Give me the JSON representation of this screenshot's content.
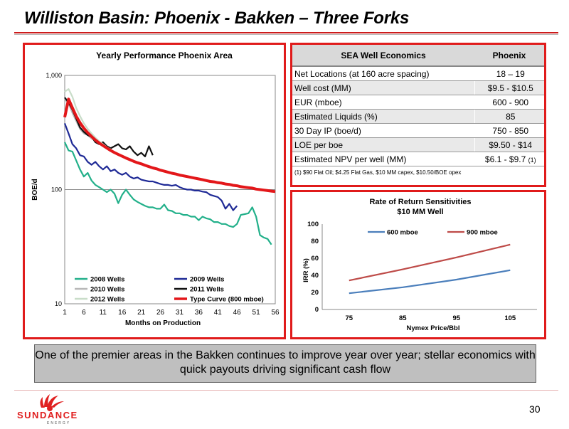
{
  "slide": {
    "title": "Williston Basin: Phoenix - Bakken – Three Forks",
    "callout": "One of the premier areas in the Bakken continues to improve year over year; stellar economics with quick payouts driving significant cash flow",
    "page_number": "30",
    "logo_text": "SUNDANCE",
    "logo_subtext": "ENERGY"
  },
  "economics": {
    "header_label": "SEA Well Economics",
    "header_value": "Phoenix",
    "rows": [
      {
        "label": "Net Locations (at 160 acre spacing)",
        "value": "18 – 19",
        "note": ""
      },
      {
        "label": "Well cost (MM)",
        "value": "$9.5 - $10.5",
        "note": ""
      },
      {
        "label": "EUR (mboe)",
        "value": "600 - 900",
        "note": ""
      },
      {
        "label": "Estimated Liquids (%)",
        "value": "85",
        "note": ""
      },
      {
        "label": "30 Day IP (boe/d)",
        "value": "750 - 850",
        "note": ""
      },
      {
        "label": "LOE per boe",
        "value": "$9.50 - $14",
        "note": ""
      },
      {
        "label": "Estimated NPV per well (MM)",
        "value": "$6.1 - $9.7",
        "note": "(1)"
      }
    ],
    "footnote": "(1) $90 Flat Oil; $4.25 Flat Gas, $10 MM capex, $10.50/BOE opex"
  },
  "chart_data": [
    {
      "type": "line",
      "title": "Yearly Performance Phoenix Area",
      "xlabel": "Months on Production",
      "ylabel": "BOE/d",
      "yscale": "log",
      "ylim": [
        10,
        1000
      ],
      "xlim": [
        1,
        56
      ],
      "x_ticks": [
        "1",
        "6",
        "11",
        "16",
        "21",
        "26",
        "31",
        "36",
        "41",
        "46",
        "51",
        "56"
      ],
      "y_ticks": [
        "10",
        "100",
        "1,000"
      ],
      "legend": "bottom",
      "series": [
        {
          "name": "2008 Wells",
          "color": "#22b08a",
          "width": 2.2,
          "values": [
            260,
            220,
            215,
            180,
            150,
            130,
            140,
            120,
            110,
            105,
            100,
            95,
            100,
            92,
            76,
            90,
            100,
            90,
            82,
            78,
            75,
            72,
            70,
            70,
            68,
            68,
            74,
            66,
            65,
            62,
            62,
            60,
            60,
            58,
            58,
            54,
            58,
            56,
            55,
            52,
            52,
            50,
            50,
            48,
            47,
            50,
            60,
            61,
            62,
            70,
            58,
            40,
            38,
            37,
            33
          ]
        },
        {
          "name": "2009 Wells",
          "color": "#1f2a96",
          "width": 2.2,
          "values": [
            380,
            310,
            250,
            230,
            200,
            195,
            175,
            165,
            175,
            160,
            150,
            160,
            145,
            150,
            140,
            135,
            140,
            130,
            125,
            128,
            122,
            120,
            118,
            118,
            115,
            112,
            110,
            110,
            108,
            110,
            105,
            102,
            100,
            100,
            98,
            98,
            96,
            95,
            90,
            88,
            86,
            80,
            68,
            75,
            66,
            72
          ]
        },
        {
          "name": "2010 Wells",
          "color": "#b8b8b8",
          "width": 2.2,
          "values": [
            620,
            570,
            470,
            400,
            340,
            310,
            300,
            280,
            270,
            260,
            245
          ]
        },
        {
          "name": "2011 Wells",
          "color": "#111111",
          "width": 2.2,
          "values": [
            640,
            580,
            500,
            420,
            350,
            320,
            300,
            290,
            260,
            250,
            260,
            240,
            230,
            240,
            250,
            230,
            225,
            240,
            215,
            200,
            210,
            195,
            240,
            200
          ]
        },
        {
          "name": "2012 Wells",
          "color": "#c9ddc9",
          "width": 2.2,
          "values": [
            720,
            760,
            650,
            520,
            440,
            380,
            340,
            310,
            285,
            265,
            250,
            235,
            225
          ]
        },
        {
          "name": "Type Curve (800 mboe)",
          "color": "#e3171a",
          "width": 4,
          "values": [
            430,
            620,
            520,
            440,
            385,
            345,
            315,
            292,
            272,
            256,
            243,
            231,
            220,
            211,
            203,
            196,
            189,
            183,
            177,
            172,
            168,
            163,
            159,
            155,
            152,
            148,
            145,
            142,
            139,
            137,
            134,
            132,
            130,
            128,
            126,
            124,
            122,
            120,
            118,
            117,
            115,
            114,
            112,
            111,
            109,
            108,
            106,
            105,
            104,
            103,
            101,
            100,
            99,
            98,
            97,
            96
          ]
        }
      ]
    },
    {
      "type": "line",
      "title": "Rate of Return Sensitivities",
      "subtitle": "$10 MM Well",
      "xlabel": "Nymex Price/Bbl",
      "ylabel": "IRR (%)",
      "ylim": [
        0,
        100
      ],
      "y_ticks": [
        "0",
        "20",
        "40",
        "60",
        "80",
        "100"
      ],
      "categories": [
        "75",
        "85",
        "95",
        "105"
      ],
      "legend": "top",
      "series": [
        {
          "name": "600 mboe",
          "color": "#4a7ebb",
          "values": [
            19,
            26,
            35,
            46
          ]
        },
        {
          "name": "900 mboe",
          "color": "#be4b48",
          "values": [
            34,
            47,
            61,
            76
          ]
        }
      ]
    }
  ]
}
